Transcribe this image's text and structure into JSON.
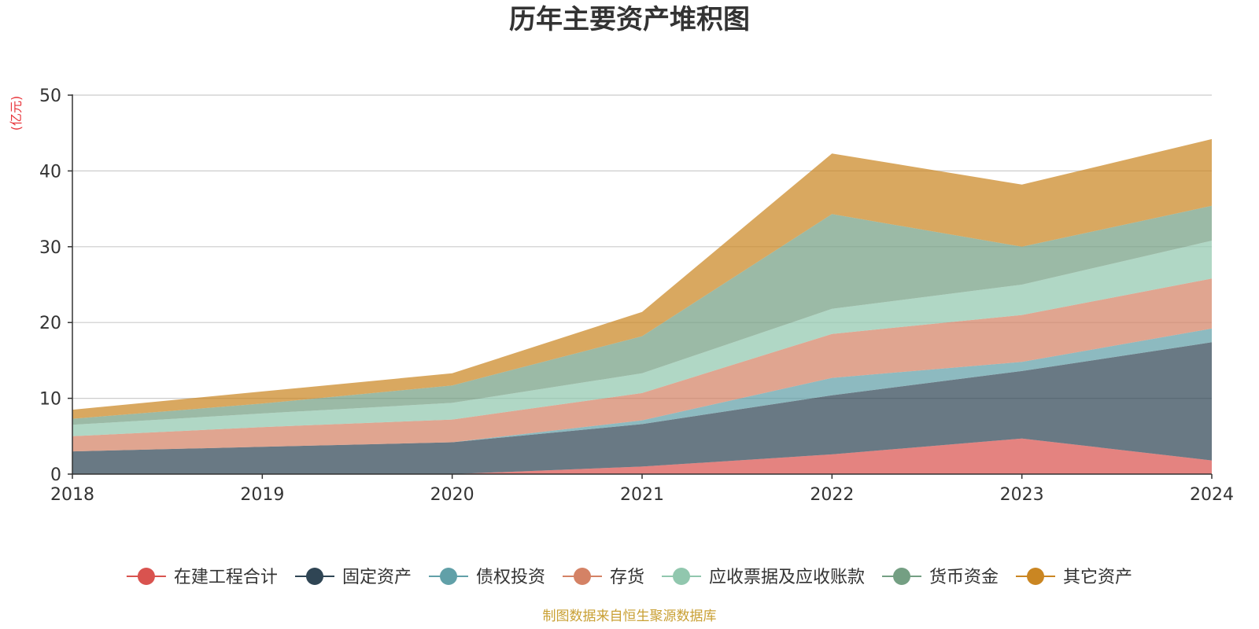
{
  "chart_data": {
    "type": "area",
    "title": "历年主要资产堆积图",
    "unit_label": "(亿元)",
    "categories": [
      "2018",
      "2019",
      "2020",
      "2021",
      "2022",
      "2023",
      "2024"
    ],
    "ylim": [
      0,
      50
    ],
    "yticks": [
      0,
      10,
      20,
      30,
      40,
      50
    ],
    "grid": true,
    "stacked": true,
    "legend_position": "bottom",
    "series": [
      {
        "name": "在建工程合计",
        "color": "#d9534f",
        "values": [
          0,
          0,
          0,
          1.0,
          2.6,
          4.7,
          1.8
        ]
      },
      {
        "name": "固定资产",
        "color": "#2f4554",
        "values": [
          3.0,
          3.6,
          4.2,
          5.6,
          7.8,
          8.9,
          15.6
        ]
      },
      {
        "name": "债权投资",
        "color": "#61a0a8",
        "values": [
          0,
          0,
          0,
          0.5,
          2.3,
          1.2,
          1.8
        ]
      },
      {
        "name": "存货",
        "color": "#d48265",
        "values": [
          2.0,
          2.6,
          3.0,
          3.6,
          5.8,
          6.2,
          6.6
        ]
      },
      {
        "name": "应收票据及应收账款",
        "color": "#91c7ae",
        "values": [
          1.5,
          1.8,
          2.2,
          2.6,
          3.3,
          4.0,
          5.0
        ]
      },
      {
        "name": "货币资金",
        "color": "#749f83",
        "values": [
          0.8,
          1.3,
          2.3,
          4.9,
          12.5,
          5.0,
          4.6
        ]
      },
      {
        "name": "其它资产",
        "color": "#ca8622",
        "values": [
          1.2,
          1.6,
          1.6,
          3.2,
          8.0,
          8.2,
          8.8
        ]
      }
    ]
  },
  "footer": {
    "source_text": "制图数据来自恒生聚源数据库",
    "source_color": "#c9a034"
  }
}
